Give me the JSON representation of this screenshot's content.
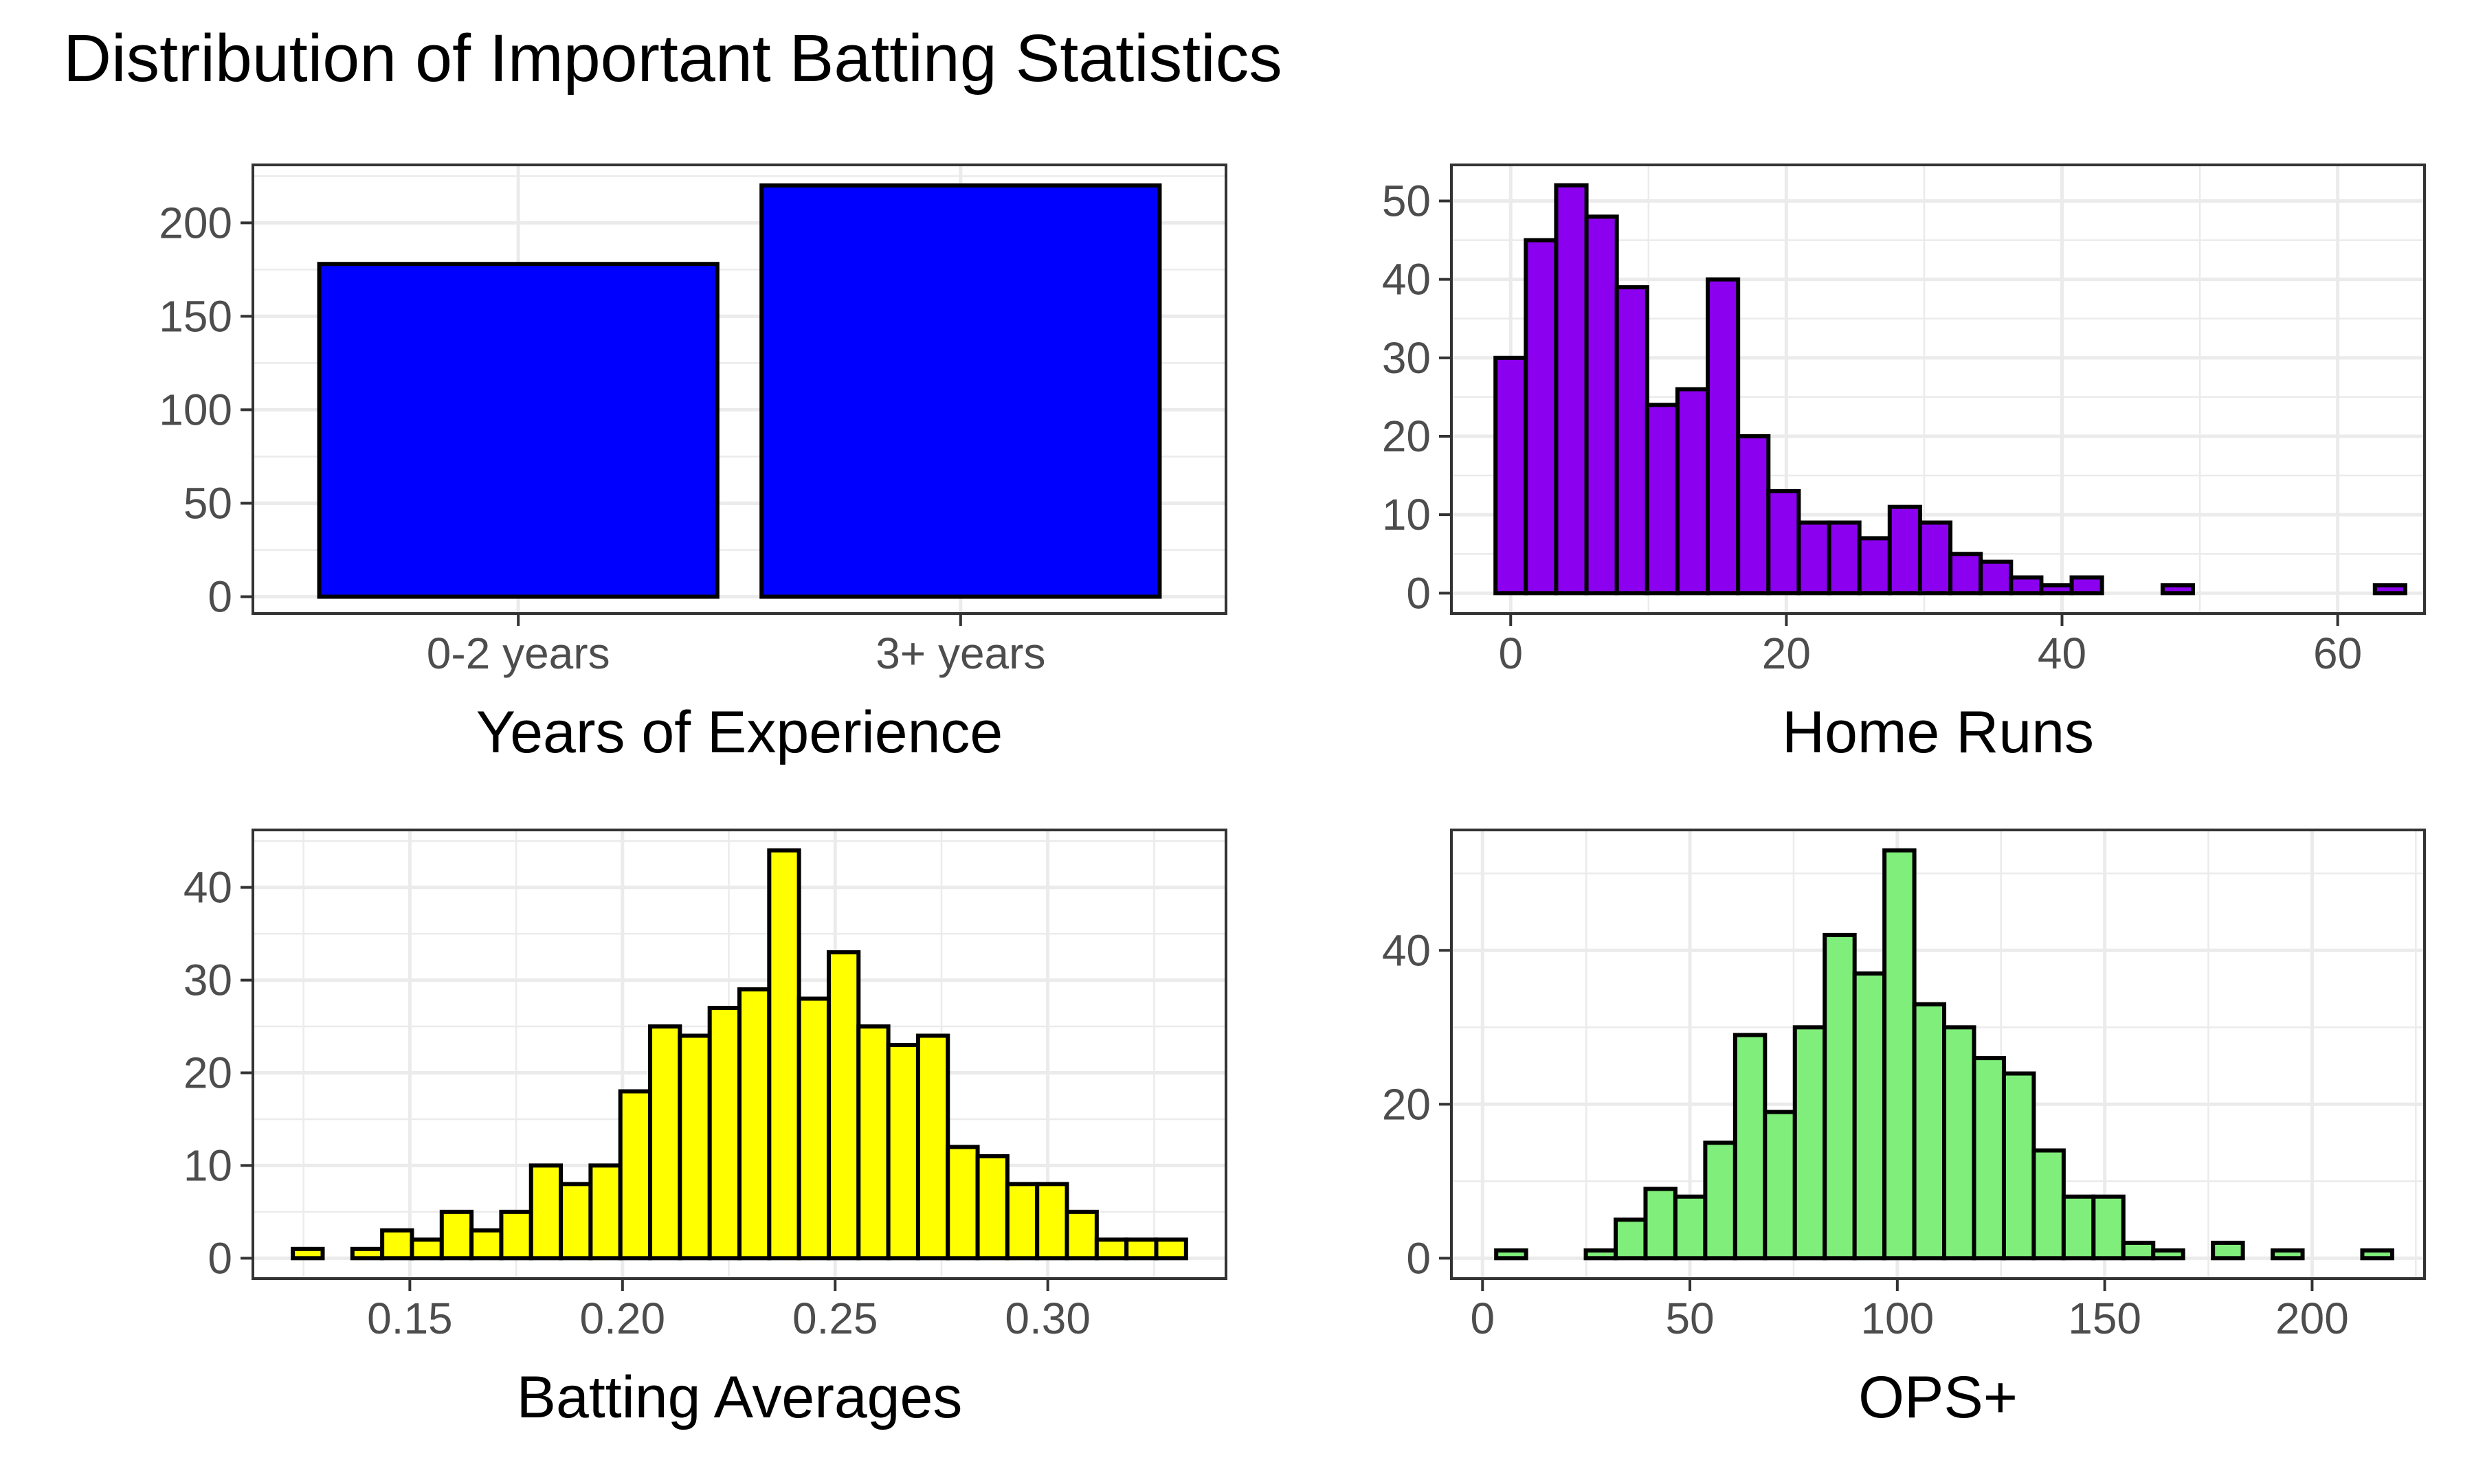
{
  "title": "Distribution of Important Batting Statistics",
  "colors": {
    "bar_outline": "#000000",
    "grid": "#ebebeb",
    "panel_border": "#333333",
    "tick_text": "#4d4d4d"
  },
  "chart_data": [
    {
      "type": "bar",
      "title": "",
      "xlabel": "Years of Experience",
      "ylabel": "",
      "fill": "#0000ff",
      "categories": [
        "0-2 years",
        "3+ years"
      ],
      "values": [
        178,
        220
      ],
      "ylim": [
        -9,
        231
      ],
      "yticks": [
        0,
        50,
        100,
        150,
        200
      ],
      "ytick_labels": [
        "0",
        "50",
        "100",
        "150",
        "200"
      ],
      "grid": true
    },
    {
      "type": "bar",
      "title": "",
      "xlabel": "Home Runs",
      "ylabel": "",
      "fill": "#8b00ee",
      "bin_start": -1.1,
      "bin_width": 2.2,
      "values": [
        30,
        45,
        52,
        48,
        39,
        24,
        26,
        40,
        20,
        13,
        9,
        9,
        7,
        11,
        9,
        5,
        4,
        2,
        1,
        2,
        0,
        0,
        1,
        0,
        0,
        0,
        0,
        0,
        0,
        1
      ],
      "xlim": [
        -4.3,
        66.3
      ],
      "ylim": [
        -2.6,
        54.6
      ],
      "xticks": [
        0,
        20,
        40,
        60
      ],
      "xtick_labels": [
        "0",
        "20",
        "40",
        "60"
      ],
      "yticks": [
        0,
        10,
        20,
        30,
        40,
        50
      ],
      "ytick_labels": [
        "0",
        "10",
        "20",
        "30",
        "40",
        "50"
      ],
      "grid": true
    },
    {
      "type": "bar",
      "title": "",
      "xlabel": "Batting Averages",
      "ylabel": "",
      "fill": "#ffff00",
      "bin_start": 0.1225,
      "bin_width": 0.007,
      "values": [
        1,
        0,
        1,
        3,
        2,
        5,
        3,
        5,
        10,
        8,
        10,
        18,
        25,
        24,
        27,
        29,
        44,
        28,
        33,
        25,
        23,
        24,
        12,
        11,
        8,
        8,
        5,
        2,
        2,
        2
      ],
      "xlim": [
        0.1131,
        0.3419
      ],
      "ylim": [
        -2.2,
        46.2
      ],
      "xticks": [
        0.15,
        0.2,
        0.25,
        0.3
      ],
      "xtick_labels": [
        "0.15",
        "0.20",
        "0.25",
        "0.30"
      ],
      "yticks": [
        0,
        10,
        20,
        30,
        40
      ],
      "ytick_labels": [
        "0",
        "10",
        "20",
        "30",
        "40"
      ],
      "grid": true
    },
    {
      "type": "bar",
      "title": "",
      "xlabel": "OPS+",
      "ylabel": "",
      "fill": "#80ee7a",
      "bin_start": 3.3,
      "bin_width": 7.2,
      "values": [
        1,
        0,
        0,
        1,
        5,
        9,
        8,
        15,
        29,
        19,
        30,
        42,
        37,
        53,
        33,
        30,
        26,
        24,
        14,
        8,
        8,
        2,
        1,
        0,
        2,
        0,
        1,
        0,
        0,
        1
      ],
      "xlim": [
        -7.5,
        227.1
      ],
      "ylim": [
        -2.65,
        55.65
      ],
      "xticks": [
        0,
        50,
        100,
        150,
        200
      ],
      "xtick_labels": [
        "0",
        "50",
        "100",
        "150",
        "200"
      ],
      "yticks": [
        0,
        20,
        40
      ],
      "ytick_labels": [
        "0",
        "20",
        "40"
      ],
      "grid": true
    }
  ]
}
